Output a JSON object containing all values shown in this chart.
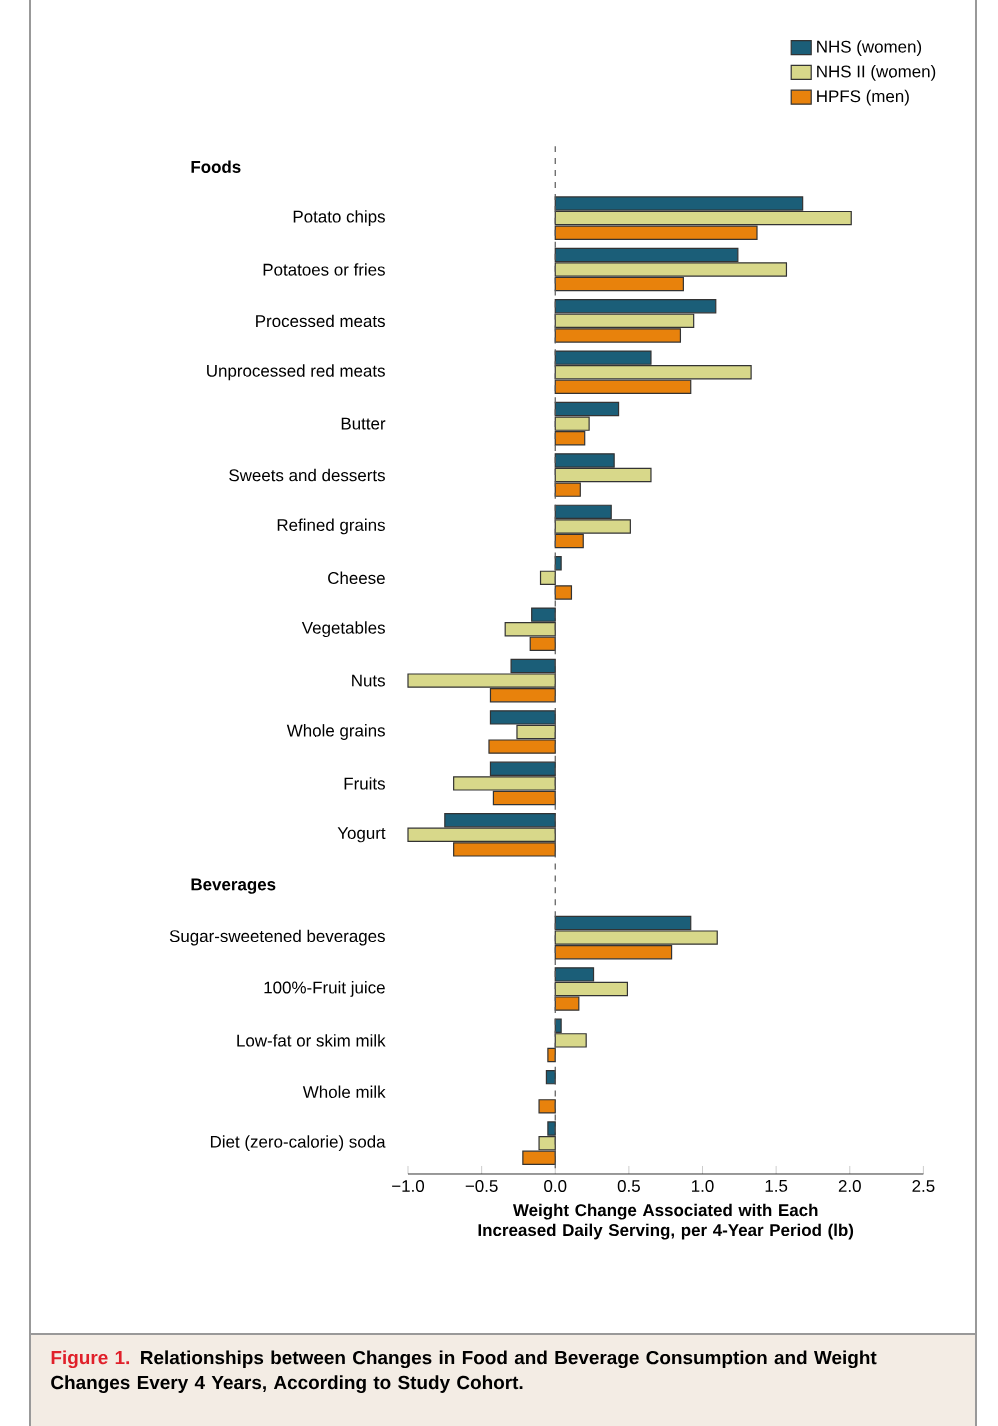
{
  "chart_data": {
    "type": "bar",
    "orientation": "horizontal",
    "title": "Figure 1.",
    "subtitle": "Relationships between Changes in Food and Beverage Consumption and Weight Changes Every 4 Years, According to Study Cohort.",
    "xlabel": "Weight Change Associated with Each Increased Daily Serving, per 4-Year Period (lb)",
    "annotations": [
      "Foods",
      "Beverages"
    ],
    "categories": [
      null,
      "Potato chips",
      "Potatoes or fries",
      "Processed meats",
      "Unprocessed red meats",
      "Butter",
      "Sweets and desserts",
      "Refined grains",
      "Cheese",
      "Vegetables",
      "Nuts",
      "Whole grains",
      "Fruits",
      "Yogurt",
      null,
      "Sugar-sweetened beverages",
      "100%-Fruit juice",
      "Low-fat or skim milk",
      "Whole milk",
      "Diet (zero-calorie) soda"
    ],
    "series": [
      {
        "name": "NHS (women)",
        "color": "#1b5e78",
        "values": [
          null,
          1.68,
          1.24,
          1.09,
          0.65,
          0.43,
          0.4,
          0.38,
          0.04,
          -0.16,
          -0.3,
          -0.44,
          -0.44,
          -0.75,
          null,
          0.92,
          0.26,
          0.04,
          -0.06,
          -0.05
        ]
      },
      {
        "name": "NHS II (women)",
        "color": "#d8d88a",
        "values": [
          null,
          2.01,
          1.57,
          0.94,
          1.33,
          0.23,
          0.65,
          0.51,
          -0.1,
          -0.34,
          -1.0,
          -0.26,
          -0.69,
          -1.0,
          null,
          1.1,
          0.49,
          0.21,
          null,
          -0.11
        ]
      },
      {
        "name": "HPFS (men)",
        "color": "#e8820c",
        "values": [
          null,
          1.37,
          0.87,
          0.85,
          0.92,
          0.2,
          0.17,
          0.19,
          0.11,
          -0.17,
          -0.44,
          -0.45,
          -0.42,
          -0.69,
          null,
          0.79,
          0.16,
          -0.05,
          -0.11,
          -0.22
        ]
      }
    ],
    "xlim": [
      -1.0,
      2.5
    ],
    "xticks": [
      {
        "value": -1.0,
        "label": "−1.0"
      },
      {
        "value": -0.5,
        "label": "−0.5"
      },
      {
        "value": 0.0,
        "label": "0.0"
      },
      {
        "value": 0.5,
        "label": "0.5"
      },
      {
        "value": 1.0,
        "label": "1.0"
      },
      {
        "value": 1.5,
        "label": "1.5"
      },
      {
        "value": 2.0,
        "label": "2.0"
      },
      {
        "value": 2.5,
        "label": "2.5"
      }
    ],
    "ref_lines": [
      {
        "axis": "x",
        "value": 0,
        "line_style": "dashed"
      }
    ],
    "legend": "top right"
  }
}
